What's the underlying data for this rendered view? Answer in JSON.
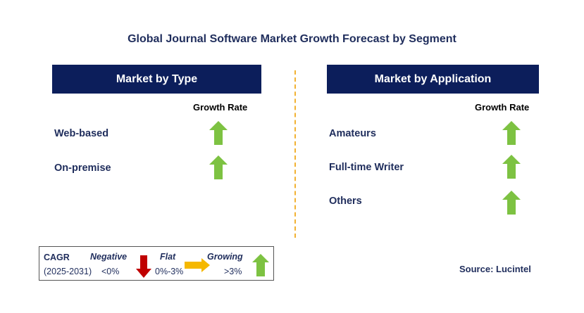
{
  "title": "Global Journal Software Market Growth Forecast by Segment",
  "left_panel": {
    "header": "Market by Type",
    "column_header": "Growth Rate",
    "rows": [
      {
        "label": "Web-based",
        "trend": "growing"
      },
      {
        "label": "On-premise",
        "trend": "growing"
      }
    ]
  },
  "right_panel": {
    "header": "Market by Application",
    "column_header": "Growth Rate",
    "rows": [
      {
        "label": "Amateurs",
        "trend": "growing"
      },
      {
        "label": "Full-time Writer",
        "trend": "growing"
      },
      {
        "label": "Others",
        "trend": "growing"
      }
    ]
  },
  "legend": {
    "cagr_label": "CAGR",
    "period": "(2025-2031)",
    "negative_label": "Negative",
    "negative_range": "<0%",
    "flat_label": "Flat",
    "flat_range": "0%-3%",
    "growing_label": "Growing",
    "growing_range": ">3%"
  },
  "source": "Source: Lucintel",
  "colors": {
    "header_bg": "#0c1e5b",
    "growing_arrow": "#7dc242",
    "negative_arrow": "#c00000",
    "flat_arrow": "#f5b800",
    "divider": "#f2b233"
  },
  "icons": {
    "growing": "up-arrow-icon",
    "negative": "down-arrow-icon",
    "flat": "right-arrow-icon"
  }
}
